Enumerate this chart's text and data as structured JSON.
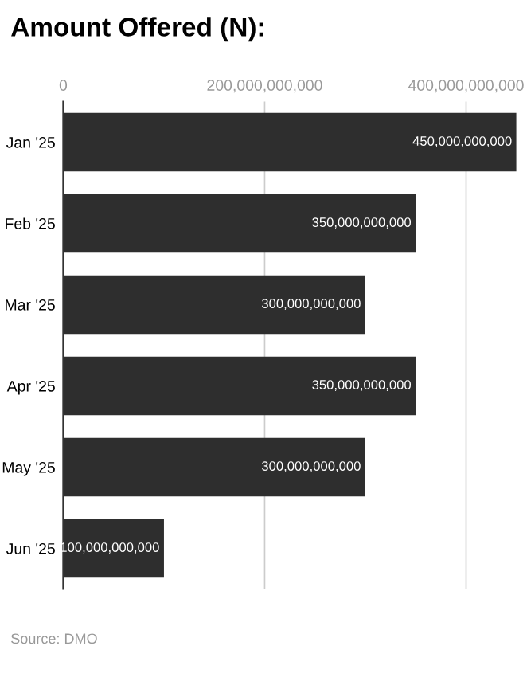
{
  "chart_data": {
    "type": "bar",
    "orientation": "horizontal",
    "title": "Amount Offered (N):",
    "categories": [
      "Jan '25",
      "Feb '25",
      "Mar '25",
      "Apr '25",
      "May '25",
      "Jun '25"
    ],
    "values": [
      450000000000,
      350000000000,
      300000000000,
      350000000000,
      300000000000,
      100000000000
    ],
    "value_labels": [
      "450,000,000,000",
      "350,000,000,000",
      "300,000,000,000",
      "350,000,000,000",
      "300,000,000,000",
      "100,000,000,000"
    ],
    "color": "#2e2e2e",
    "xlim": [
      0,
      450000000000
    ],
    "xticks": [
      {
        "value": 0,
        "label": "0"
      },
      {
        "value": 200000000000,
        "label": "200,000,000,000"
      },
      {
        "value": 400000000000,
        "label": "400,000,000,000"
      }
    ],
    "grid": "x",
    "annotations": [
      "Source: DMO"
    ]
  }
}
